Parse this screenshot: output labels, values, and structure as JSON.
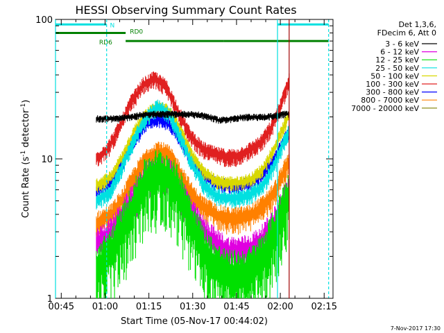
{
  "chart_data": {
    "type": "line",
    "title": "HESSI Observing Summary Count Rates",
    "xlabel": "Start Time (05-Nov-17 00:44:02)",
    "ylabel": "Count Rate (s",
    "ylabel_sup": "-1",
    "ylabel_tail": " detector",
    "ylabel_close": ")",
    "x_unit": "minutes after 00:44:02",
    "xlim": [
      -1,
      94
    ],
    "ylim": [
      1,
      100
    ],
    "yscale": "log",
    "grid": false,
    "legend_position": "right",
    "x_ticks": [
      {
        "v": 0.97,
        "label": "00:45"
      },
      {
        "v": 15.97,
        "label": "01:00"
      },
      {
        "v": 30.97,
        "label": "01:15"
      },
      {
        "v": 45.97,
        "label": "01:30"
      },
      {
        "v": 60.97,
        "label": "01:45"
      },
      {
        "v": 75.97,
        "label": "02:00"
      },
      {
        "v": 90.97,
        "label": "02:15"
      }
    ],
    "y_ticks": [
      {
        "v": 1,
        "label": "1"
      },
      {
        "v": 10,
        "label": "10"
      },
      {
        "v": 100,
        "label": "100"
      }
    ],
    "legend_header": [
      "Det 1,3,6,",
      "FDecim 6, Att 0"
    ],
    "series": [
      {
        "name": "3 - 6 keV",
        "color": "#000000",
        "x": [
          13,
          20,
          25,
          30,
          35,
          40,
          45,
          50,
          55,
          60,
          65,
          70,
          75,
          77,
          79
        ],
        "values": [
          19.5,
          19.5,
          20,
          21,
          21,
          21,
          21,
          20.5,
          19,
          19.5,
          20,
          20,
          20.5,
          21,
          21
        ]
      },
      {
        "name": "6 - 12 keV",
        "color": "#e000e0",
        "x": [
          13,
          18,
          22,
          26,
          30,
          34,
          38,
          42,
          46,
          50,
          54,
          58,
          62,
          66,
          70,
          74,
          77,
          79
        ],
        "values": [
          2.5,
          3.0,
          4.0,
          5.5,
          7.5,
          8.5,
          8.0,
          6.0,
          4.0,
          3.0,
          2.5,
          2.2,
          2.2,
          2.3,
          2.7,
          3.6,
          5.0,
          6.0
        ]
      },
      {
        "name": "12 - 25 keV",
        "color": "#00e000",
        "x": [
          13,
          18,
          22,
          26,
          30,
          34,
          38,
          42,
          46,
          50,
          54,
          58,
          62,
          66,
          70,
          74,
          77,
          79
        ],
        "values": [
          1.6,
          2.2,
          3.2,
          4.8,
          7.0,
          8.0,
          7.5,
          5.5,
          3.4,
          2.2,
          1.7,
          1.5,
          1.5,
          1.6,
          2.0,
          3.0,
          4.5,
          5.5
        ]
      },
      {
        "name": "25 - 50 keV",
        "color": "#00e0e0",
        "x": [
          13,
          18,
          22,
          26,
          30,
          34,
          38,
          42,
          46,
          50,
          54,
          58,
          62,
          66,
          70,
          74,
          77,
          79
        ],
        "values": [
          5.0,
          6.0,
          9.0,
          14.0,
          20.0,
          24.0,
          21.0,
          14.0,
          9.0,
          6.5,
          5.5,
          5.2,
          5.3,
          5.6,
          6.5,
          9.0,
          13.0,
          16.0
        ]
      },
      {
        "name": "50 - 100 keV",
        "color": "#d8d800",
        "x": [
          13,
          18,
          22,
          26,
          30,
          34,
          38,
          42,
          46,
          50,
          54,
          58,
          62,
          66,
          70,
          74,
          77,
          79
        ],
        "values": [
          6.5,
          7.5,
          10.5,
          16.0,
          21.0,
          24.0,
          22.0,
          16.0,
          10.5,
          8.0,
          7.0,
          6.8,
          6.8,
          7.2,
          8.5,
          12.0,
          17.0,
          21.0
        ]
      },
      {
        "name": "100 - 300 keV",
        "color": "#e02020",
        "x": [
          13,
          17,
          21,
          25,
          29,
          33,
          37,
          41,
          45,
          49,
          53,
          57,
          61,
          65,
          69,
          73,
          76,
          78,
          79
        ],
        "values": [
          10.0,
          12.0,
          17.0,
          26.0,
          34.0,
          38.0,
          33.0,
          22.0,
          15.0,
          12.0,
          11.0,
          10.5,
          10.5,
          11.5,
          13.0,
          17.0,
          24.0,
          32.0,
          37.0
        ]
      },
      {
        "name": "300 - 800 keV",
        "color": "#0000ff",
        "x": [
          13,
          18,
          22,
          26,
          30,
          34,
          38,
          42,
          46,
          50,
          54,
          58,
          62,
          66,
          70,
          74,
          77,
          79
        ],
        "values": [
          6.0,
          7.0,
          9.5,
          13.5,
          18.0,
          19.5,
          18.0,
          13.5,
          9.5,
          7.5,
          6.7,
          6.5,
          6.5,
          6.8,
          7.8,
          10.0,
          13.5,
          16.0
        ]
      },
      {
        "name": "800 - 7000 keV",
        "color": "#ff8000",
        "x": [
          13,
          18,
          22,
          26,
          30,
          34,
          38,
          42,
          46,
          50,
          54,
          58,
          62,
          66,
          70,
          74,
          77,
          79
        ],
        "values": [
          3.5,
          4.0,
          5.2,
          7.5,
          10.0,
          11.5,
          10.5,
          7.8,
          5.5,
          4.5,
          4.0,
          3.8,
          3.8,
          4.0,
          4.6,
          5.8,
          8.0,
          9.5
        ]
      },
      {
        "name": "7000 - 20000 keV",
        "color": "#808000",
        "x": [],
        "values": []
      }
    ],
    "bars": [
      {
        "label": "N",
        "color": "#00e0e0",
        "y": 92,
        "segments": [
          [
            -1,
            16.5
          ],
          [
            75,
            92.5
          ]
        ]
      },
      {
        "label": "RD0",
        "color": "#008000",
        "y": 80,
        "segments": [
          [
            -1,
            23
          ]
        ]
      },
      {
        "label": "RD6",
        "color": "#008000",
        "y": 70,
        "segments": [
          [
            23,
            39.5
          ],
          [
            39.5,
            56.5
          ],
          [
            56.5,
            92.5
          ]
        ]
      }
    ],
    "vlines": [
      {
        "x": -1,
        "color": "#00e0e0",
        "style": "solid"
      },
      {
        "x": 16.5,
        "color": "#00e0e0",
        "style": "dashed"
      },
      {
        "x": 75,
        "color": "#00e0e0",
        "style": "solid"
      },
      {
        "x": 92.5,
        "color": "#00e0e0",
        "style": "dashed"
      },
      {
        "x": 79,
        "color": "#a00000",
        "style": "solid"
      }
    ]
  },
  "footer": {
    "timestamp": "7-Nov-2017 17:30"
  }
}
